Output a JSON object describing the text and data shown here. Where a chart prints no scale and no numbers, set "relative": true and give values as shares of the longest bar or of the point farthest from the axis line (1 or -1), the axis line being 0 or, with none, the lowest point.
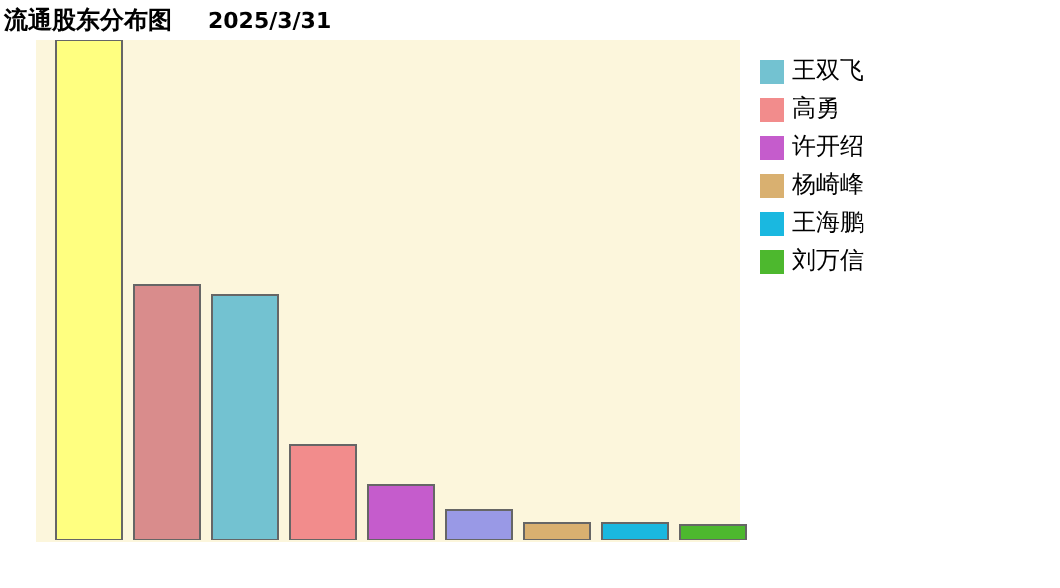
{
  "chart_data": {
    "type": "bar",
    "title": "流通股东分布图",
    "subtitle": "2025/3/31",
    "relative": true,
    "categories": [
      null
    ],
    "series": [
      {
        "color": "#ffff80",
        "values": [
          1
        ]
      },
      {
        "color": "#d98c8c",
        "values": [
          0.51
        ]
      },
      {
        "name": "王双飞",
        "color": "#73c2d1",
        "values": [
          0.49
        ]
      },
      {
        "name": "高勇",
        "color": "#f28c8c",
        "values": [
          0.19
        ]
      },
      {
        "name": "许开绍",
        "color": "#c55ccc",
        "values": [
          0.11
        ]
      },
      {
        "color": "#9999e6",
        "values": [
          0.06
        ]
      },
      {
        "name": "杨崎峰",
        "color": "#d9b070",
        "values": [
          0.034
        ]
      },
      {
        "name": "王海鹏",
        "color": "#1ab8e0",
        "values": [
          0.034
        ]
      },
      {
        "name": "刘万信",
        "color": "#4db82e",
        "values": [
          0.03
        ]
      }
    ],
    "legend": "right",
    "tick_labels": false
  }
}
